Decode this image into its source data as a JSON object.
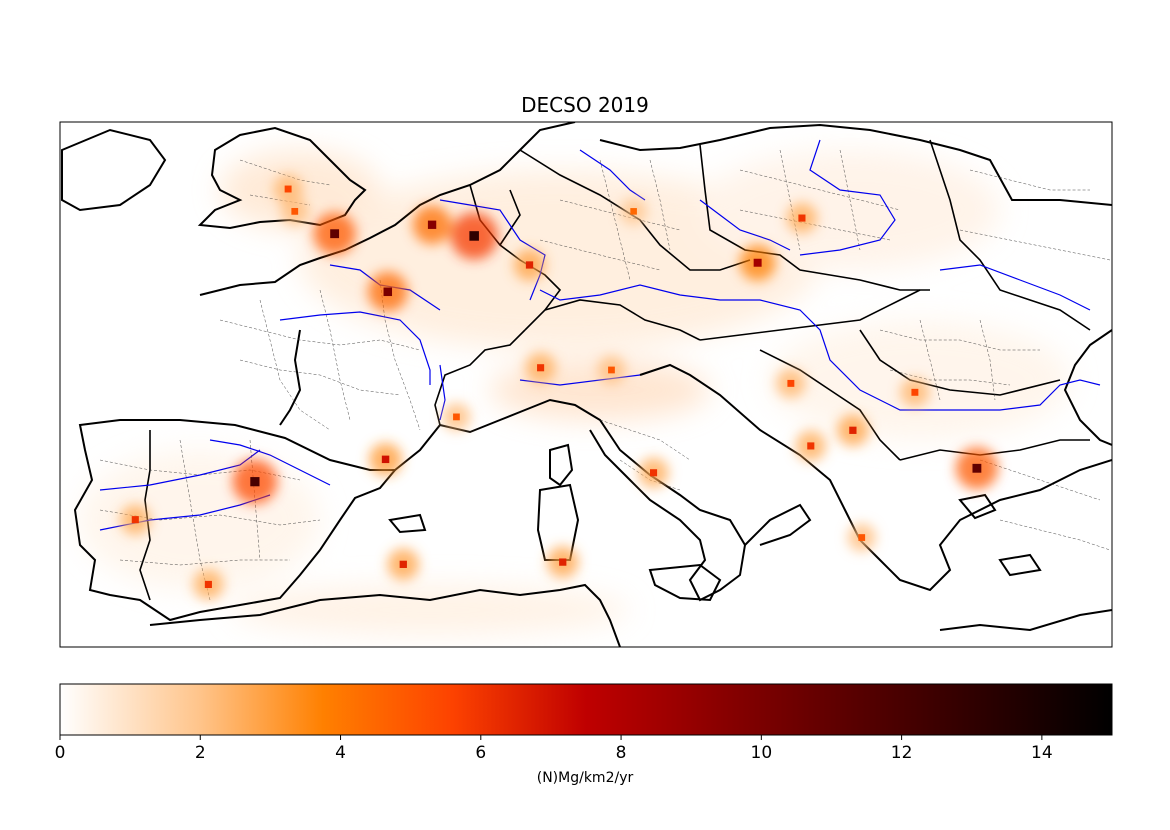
{
  "chart_data": {
    "type": "heatmap",
    "title": "DECSO 2019",
    "colorbar": {
      "label": "(N)Mg/km2/yr",
      "range": [
        0,
        15
      ],
      "ticks": [
        "0",
        "2",
        "4",
        "6",
        "8",
        "10",
        "12",
        "14"
      ],
      "tick_values": [
        0,
        2,
        4,
        6,
        8,
        10,
        12,
        14
      ],
      "colormap": "gist_heat_r",
      "stops": [
        {
          "value": 0,
          "color": "#ffffff"
        },
        {
          "value": 2,
          "color": "#ffc48a"
        },
        {
          "value": 3.75,
          "color": "#ff8000"
        },
        {
          "value": 5.6,
          "color": "#fd4200"
        },
        {
          "value": 7.5,
          "color": "#bf0000"
        },
        {
          "value": 9.4,
          "color": "#8a0000"
        },
        {
          "value": 11.25,
          "color": "#5a0000"
        },
        {
          "value": 15,
          "color": "#000000"
        }
      ]
    },
    "hotspots": [
      {
        "name": "",
        "lon": 4.3,
        "lat": 51.9,
        "value": 9.5
      },
      {
        "name": "",
        "lon": 6.2,
        "lat": 51.4,
        "value": 13.0
      },
      {
        "name": "",
        "lon": -0.1,
        "lat": 51.5,
        "value": 11.0
      },
      {
        "name": "",
        "lon": 2.3,
        "lat": 48.9,
        "value": 10.0
      },
      {
        "name": "",
        "lon": -3.7,
        "lat": 40.4,
        "value": 12.0
      },
      {
        "name": "",
        "lon": 9.2,
        "lat": 45.5,
        "value": 6.0
      },
      {
        "name": "",
        "lon": 8.7,
        "lat": 50.1,
        "value": 6.5
      },
      {
        "name": "",
        "lon": 19.0,
        "lat": 50.2,
        "value": 8.5
      },
      {
        "name": "",
        "lon": 2.2,
        "lat": 41.4,
        "value": 7.0
      },
      {
        "name": "",
        "lon": 14.3,
        "lat": 40.8,
        "value": 6.0
      },
      {
        "name": "",
        "lon": 28.9,
        "lat": 41.0,
        "value": 11.0
      },
      {
        "name": "",
        "lon": 23.7,
        "lat": 37.9,
        "value": 5.0
      },
      {
        "name": "",
        "lon": 20.5,
        "lat": 44.8,
        "value": 5.5
      },
      {
        "name": "",
        "lon": 26.1,
        "lat": 44.4,
        "value": 5.5
      },
      {
        "name": "",
        "lon": 21.0,
        "lat": 52.2,
        "value": 6.0
      },
      {
        "name": "",
        "lon": 13.4,
        "lat": 52.5,
        "value": 4.5
      },
      {
        "name": "",
        "lon": -9.1,
        "lat": 38.7,
        "value": 6.0
      },
      {
        "name": "",
        "lon": 3.0,
        "lat": 36.7,
        "value": 6.5
      },
      {
        "name": "",
        "lon": 10.2,
        "lat": 36.8,
        "value": 6.5
      },
      {
        "name": "",
        "lon": -5.8,
        "lat": 35.8,
        "value": 6.0
      },
      {
        "name": "",
        "lon": 23.3,
        "lat": 42.7,
        "value": 6.5
      },
      {
        "name": "",
        "lon": 21.4,
        "lat": 42.0,
        "value": 6.0
      },
      {
        "name": "",
        "lon": 5.4,
        "lat": 43.3,
        "value": 5.0
      },
      {
        "name": "",
        "lon": 12.4,
        "lat": 45.4,
        "value": 5.0
      },
      {
        "name": "",
        "lon": -2.2,
        "lat": 53.5,
        "value": 5.5
      },
      {
        "name": "",
        "lon": -1.9,
        "lat": 52.5,
        "value": 5.0
      }
    ]
  }
}
